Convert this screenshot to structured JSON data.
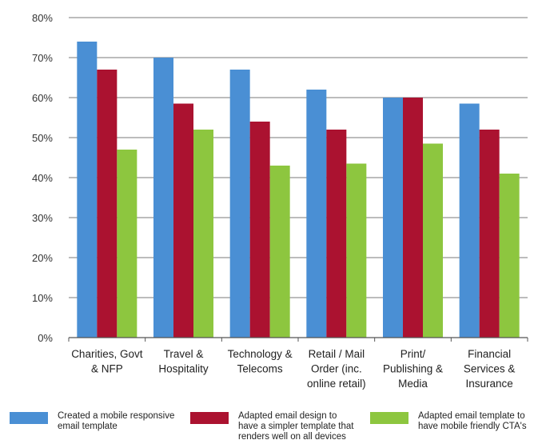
{
  "chart_data": {
    "type": "bar",
    "title": "",
    "xlabel": "",
    "ylabel": "",
    "ylim": [
      0,
      80
    ],
    "yticks": [
      0,
      10,
      20,
      30,
      40,
      50,
      60,
      70,
      80
    ],
    "ytick_labels": [
      "0%",
      "10%",
      "20%",
      "30%",
      "40%",
      "50%",
      "60%",
      "70%",
      "80%"
    ],
    "grid": true,
    "legend_position": "bottom",
    "categories": [
      [
        "Charities, Govt",
        "& NFP"
      ],
      [
        "Travel &",
        "Hospitality"
      ],
      [
        "Technology &",
        "Telecoms"
      ],
      [
        "Retail / Mail",
        "Order (inc.",
        "online retail)"
      ],
      [
        "Print/",
        "Publishing &",
        "Media"
      ],
      [
        "Financial",
        "Services &",
        "Insurance"
      ]
    ],
    "series": [
      {
        "name": "Created a mobile responsive email template",
        "legend_lines": [
          "Created a mobile responsive",
          "email template"
        ],
        "color": "#4a8fd4",
        "values": [
          74,
          70,
          67,
          62,
          60,
          58.5
        ]
      },
      {
        "name": "Adapted email design to have a simpler template that renders well on all devices",
        "legend_lines": [
          "Adapted email design to",
          "have a simpler template that",
          "renders well on all devices"
        ],
        "color": "#ab1230",
        "values": [
          67,
          58.5,
          54,
          52,
          60,
          52
        ]
      },
      {
        "name": "Adapted email template to have mobile friendly CTA's",
        "legend_lines": [
          "Adapted email template to",
          "have mobile friendly CTA's"
        ],
        "color": "#8dc63f",
        "values": [
          47,
          52,
          43,
          43.5,
          48.5,
          41
        ]
      }
    ]
  }
}
